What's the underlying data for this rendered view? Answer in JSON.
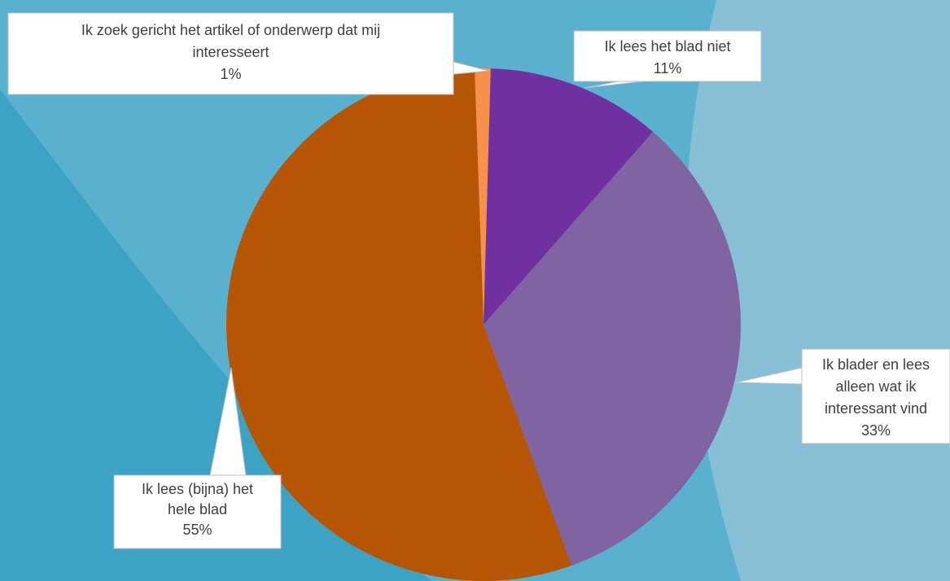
{
  "chart_data": {
    "type": "pie",
    "title": "",
    "slices": [
      {
        "label_lines": [
          "Ik zoek gericht het artikel of onderwerp dat mij",
          "interesseert"
        ],
        "pct_label": "1%",
        "value": 1,
        "color": "#f5914a"
      },
      {
        "label_lines": [
          "Ik lees het blad niet"
        ],
        "pct_label": "11%",
        "value": 11,
        "color": "#7030a0"
      },
      {
        "label_lines": [
          "Ik blader en lees",
          "alleen wat ik",
          "interessant vind"
        ],
        "pct_label": "33%",
        "value": 33,
        "color": "#8064a2"
      },
      {
        "label_lines": [
          "Ik lees (bijna) het",
          "hele blad"
        ],
        "pct_label": "55%",
        "value": 55,
        "color": "#b65503"
      }
    ],
    "start_angle_deg": -2,
    "clockwise": true,
    "legend": "none",
    "label_style": "callouts"
  },
  "colors": {
    "background": "#5ab0cf",
    "background_dark": "#3da3c4",
    "background_light": "#85bed5",
    "callout_fill": "#ffffff",
    "callout_text": "#404040"
  }
}
